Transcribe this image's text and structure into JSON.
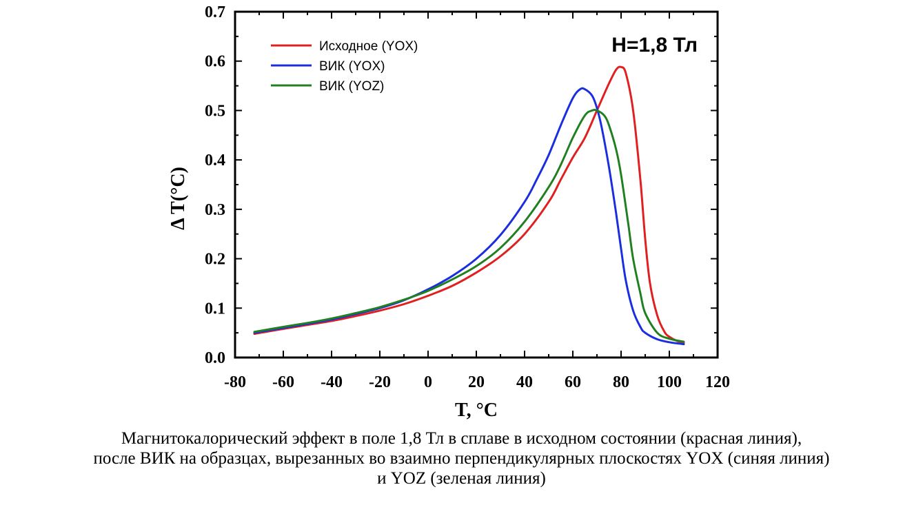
{
  "chart_data": {
    "type": "line",
    "title": "",
    "annotation": "H=1,8 Тл",
    "xlabel": "T, °C",
    "ylabel": "Δ T(°C)",
    "xlim": [
      -80,
      120
    ],
    "ylim": [
      0.0,
      0.7
    ],
    "xticks": [
      "-80",
      "-60",
      "-40",
      "-20",
      "0",
      "20",
      "40",
      "60",
      "80",
      "100",
      "120"
    ],
    "yticks": [
      "0.0",
      "0.1",
      "0.2",
      "0.3",
      "0.4",
      "0.5",
      "0.6",
      "0.7"
    ],
    "grid": false,
    "legend_position": "top-left",
    "series": [
      {
        "name": "Исходное (YOX)",
        "color": "#e02020",
        "x": [
          -72,
          -60,
          -50,
          -40,
          -30,
          -20,
          -10,
          0,
          10,
          20,
          30,
          40,
          50,
          55,
          60,
          65,
          70,
          75,
          78,
          80,
          82,
          85,
          88,
          90,
          92,
          95,
          98,
          100,
          103,
          106
        ],
        "y": [
          0.048,
          0.058,
          0.066,
          0.074,
          0.084,
          0.095,
          0.108,
          0.125,
          0.145,
          0.172,
          0.205,
          0.25,
          0.315,
          0.36,
          0.405,
          0.445,
          0.5,
          0.555,
          0.583,
          0.588,
          0.575,
          0.5,
          0.36,
          0.24,
          0.15,
          0.085,
          0.052,
          0.042,
          0.034,
          0.03
        ]
      },
      {
        "name": "ВИК (YOX)",
        "color": "#1a2ee0",
        "x": [
          -72,
          -60,
          -50,
          -40,
          -30,
          -20,
          -10,
          0,
          10,
          20,
          30,
          40,
          45,
          50,
          55,
          60,
          63,
          65,
          68,
          70,
          72,
          75,
          78,
          80,
          82,
          85,
          88,
          90,
          95,
          100,
          106
        ],
        "y": [
          0.05,
          0.06,
          0.068,
          0.077,
          0.088,
          0.1,
          0.116,
          0.138,
          0.165,
          0.2,
          0.248,
          0.315,
          0.36,
          0.41,
          0.47,
          0.525,
          0.543,
          0.543,
          0.53,
          0.505,
          0.465,
          0.385,
          0.29,
          0.22,
          0.155,
          0.095,
          0.062,
          0.05,
          0.037,
          0.031,
          0.027
        ]
      },
      {
        "name": "ВИК (YOZ)",
        "color": "#208020",
        "x": [
          -72,
          -60,
          -50,
          -40,
          -30,
          -20,
          -10,
          0,
          10,
          20,
          30,
          40,
          50,
          55,
          60,
          65,
          68,
          70,
          73,
          75,
          78,
          80,
          83,
          85,
          88,
          90,
          95,
          100,
          106
        ],
        "y": [
          0.052,
          0.062,
          0.07,
          0.079,
          0.09,
          0.102,
          0.117,
          0.135,
          0.158,
          0.185,
          0.222,
          0.275,
          0.345,
          0.39,
          0.445,
          0.49,
          0.5,
          0.5,
          0.49,
          0.47,
          0.42,
          0.37,
          0.27,
          0.2,
          0.13,
          0.09,
          0.05,
          0.038,
          0.032
        ]
      }
    ]
  },
  "caption": {
    "line1": "Магнитокалорический эффект в поле 1,8 Тл в сплаве в исходном состоянии (красная линия),",
    "line2": "после ВИК на образцах, вырезанных во взаимно перпендикулярных плоскостях YOX (синяя линия)",
    "line3": "и YOZ (зеленая линия)"
  }
}
